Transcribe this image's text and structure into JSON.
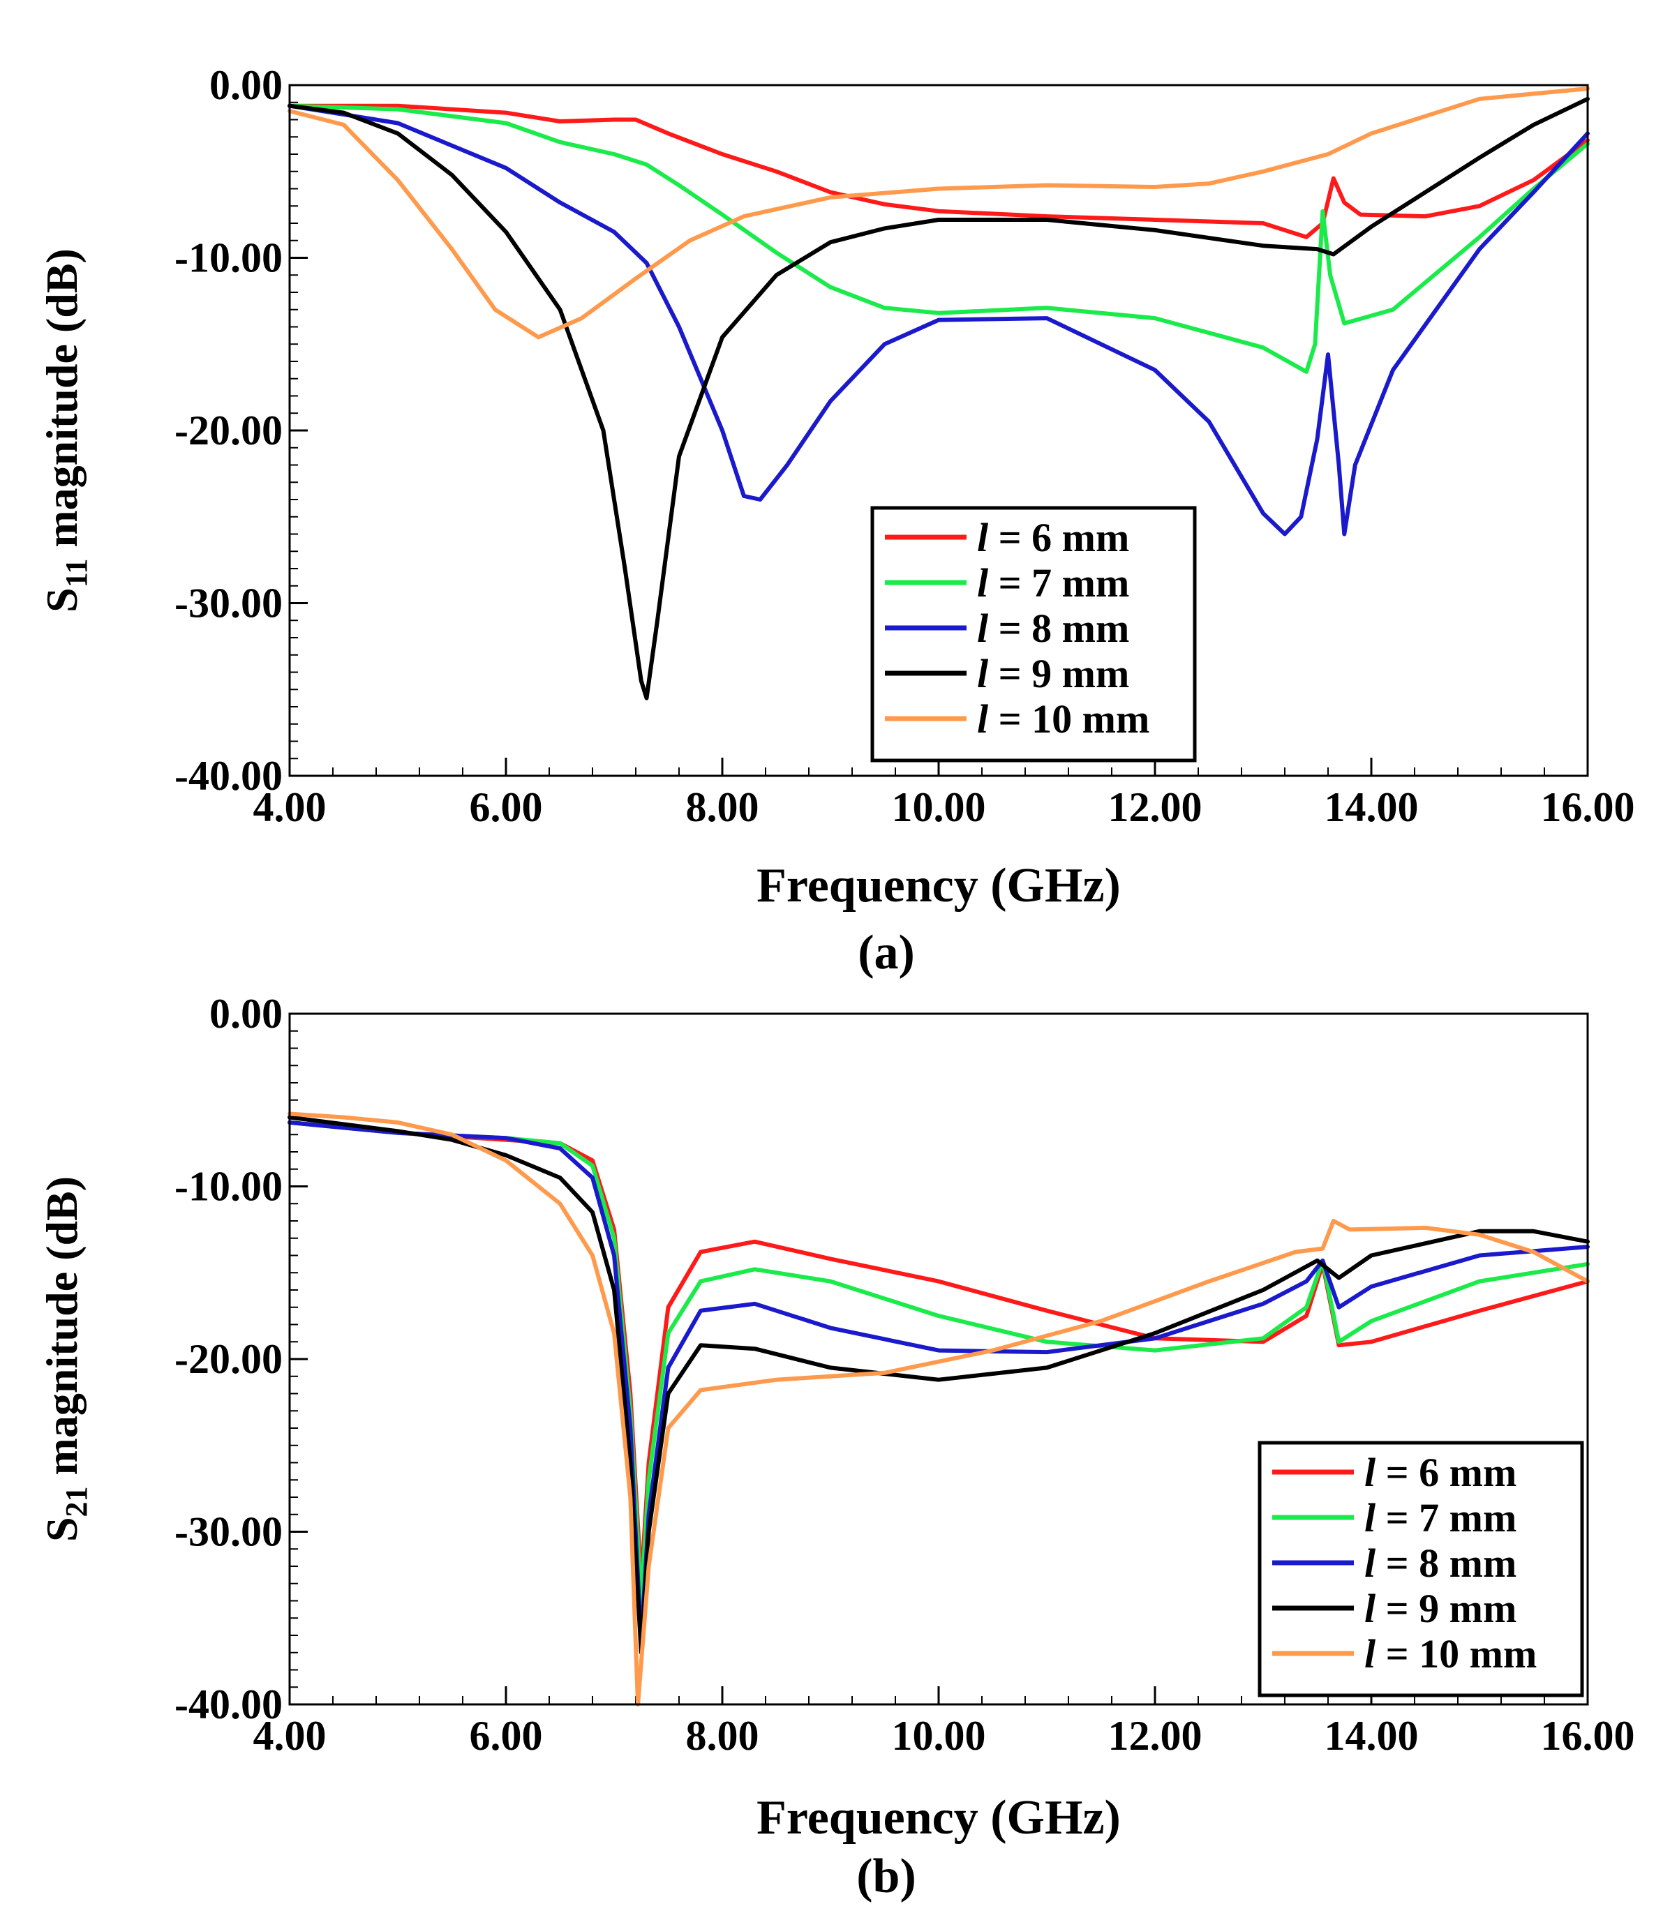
{
  "chart_data": [
    {
      "type": "line",
      "panel_label": "(a)",
      "xlabel": "Frequency (GHz)",
      "ylabel_main": "S",
      "ylabel_sub": "11",
      "ylabel_rest": " magnitude (dB)",
      "xlim": [
        4,
        16
      ],
      "ylim": [
        -40,
        0
      ],
      "x_ticks": [
        "4.00",
        "6.00",
        "8.00",
        "10.00",
        "12.00",
        "14.00",
        "16.00"
      ],
      "y_ticks": [
        "0.00",
        "-10.00",
        "-20.00",
        "-30.00",
        "-40.00"
      ],
      "grid": false,
      "legend_position": "bottom-center",
      "series": [
        {
          "name": "l = 6 mm",
          "legend_var": "l",
          "legend_rest": " = 6 mm",
          "color": "#ff1a1a",
          "points": [
            [
              4,
              -1.2
            ],
            [
              5,
              -1.2
            ],
            [
              6,
              -1.6
            ],
            [
              6.5,
              -2.1
            ],
            [
              7,
              -2.0
            ],
            [
              7.2,
              -2.0
            ],
            [
              7.5,
              -2.8
            ],
            [
              8,
              -4.0
            ],
            [
              8.5,
              -5.0
            ],
            [
              9,
              -6.2
            ],
            [
              9.5,
              -6.9
            ],
            [
              10,
              -7.3
            ],
            [
              11,
              -7.6
            ],
            [
              12,
              -7.8
            ],
            [
              13,
              -8.0
            ],
            [
              13.4,
              -8.8
            ],
            [
              13.55,
              -8.0
            ],
            [
              13.65,
              -5.4
            ],
            [
              13.75,
              -6.8
            ],
            [
              13.9,
              -7.5
            ],
            [
              14.5,
              -7.6
            ],
            [
              15,
              -7.0
            ],
            [
              15.5,
              -5.5
            ],
            [
              16,
              -3.2
            ]
          ]
        },
        {
          "name": "l = 7 mm",
          "legend_var": "l",
          "legend_rest": " = 7 mm",
          "color": "#1aeb4a",
          "points": [
            [
              4,
              -1.2
            ],
            [
              5,
              -1.4
            ],
            [
              6,
              -2.2
            ],
            [
              6.5,
              -3.3
            ],
            [
              7,
              -4.0
            ],
            [
              7.3,
              -4.6
            ],
            [
              7.6,
              -5.8
            ],
            [
              8,
              -7.5
            ],
            [
              8.5,
              -9.7
            ],
            [
              9,
              -11.7
            ],
            [
              9.5,
              -12.9
            ],
            [
              10,
              -13.2
            ],
            [
              11,
              -12.9
            ],
            [
              12,
              -13.5
            ],
            [
              13,
              -15.2
            ],
            [
              13.4,
              -16.6
            ],
            [
              13.48,
              -15.0
            ],
            [
              13.55,
              -7.3
            ],
            [
              13.62,
              -11.0
            ],
            [
              13.75,
              -13.8
            ],
            [
              14.2,
              -13.0
            ],
            [
              15,
              -8.8
            ],
            [
              15.5,
              -6.0
            ],
            [
              16,
              -3.4
            ]
          ]
        },
        {
          "name": "l = 8 mm",
          "legend_var": "l",
          "legend_rest": " = 8 mm",
          "color": "#1a1acc",
          "points": [
            [
              4,
              -1.2
            ],
            [
              5,
              -2.2
            ],
            [
              6,
              -4.8
            ],
            [
              6.5,
              -6.8
            ],
            [
              7,
              -8.5
            ],
            [
              7.3,
              -10.3
            ],
            [
              7.6,
              -14.0
            ],
            [
              8,
              -20.0
            ],
            [
              8.2,
              -23.8
            ],
            [
              8.35,
              -24.0
            ],
            [
              8.6,
              -22.0
            ],
            [
              9,
              -18.3
            ],
            [
              9.5,
              -15.0
            ],
            [
              10,
              -13.6
            ],
            [
              11,
              -13.5
            ],
            [
              12,
              -16.5
            ],
            [
              12.5,
              -19.5
            ],
            [
              13,
              -24.8
            ],
            [
              13.2,
              -26.0
            ],
            [
              13.35,
              -25.0
            ],
            [
              13.5,
              -20.5
            ],
            [
              13.6,
              -15.6
            ],
            [
              13.7,
              -22.0
            ],
            [
              13.75,
              -26.0
            ],
            [
              13.85,
              -22.0
            ],
            [
              14.2,
              -16.5
            ],
            [
              15,
              -9.5
            ],
            [
              15.5,
              -6.2
            ],
            [
              16,
              -2.8
            ]
          ]
        },
        {
          "name": "l = 9 mm",
          "legend_var": "l",
          "legend_rest": " = 9 mm",
          "color": "#000000",
          "points": [
            [
              4,
              -1.2
            ],
            [
              4.5,
              -1.6
            ],
            [
              5,
              -2.8
            ],
            [
              5.5,
              -5.2
            ],
            [
              6,
              -8.5
            ],
            [
              6.5,
              -13.0
            ],
            [
              6.9,
              -20.0
            ],
            [
              7.1,
              -28.0
            ],
            [
              7.25,
              -34.5
            ],
            [
              7.3,
              -35.5
            ],
            [
              7.4,
              -31.0
            ],
            [
              7.6,
              -21.5
            ],
            [
              8,
              -14.6
            ],
            [
              8.5,
              -11.0
            ],
            [
              9,
              -9.1
            ],
            [
              9.5,
              -8.3
            ],
            [
              10,
              -7.8
            ],
            [
              11,
              -7.8
            ],
            [
              12,
              -8.4
            ],
            [
              13,
              -9.3
            ],
            [
              13.5,
              -9.5
            ],
            [
              13.65,
              -9.8
            ],
            [
              14,
              -8.2
            ],
            [
              15,
              -4.2
            ],
            [
              15.5,
              -2.3
            ],
            [
              16,
              -0.8
            ]
          ]
        },
        {
          "name": "l = 10 mm",
          "legend_var": "l",
          "legend_rest": " = 10 mm",
          "color": "#ff9a4d",
          "points": [
            [
              4,
              -1.5
            ],
            [
              4.5,
              -2.3
            ],
            [
              5,
              -5.5
            ],
            [
              5.5,
              -9.5
            ],
            [
              5.9,
              -13.0
            ],
            [
              6.3,
              -14.6
            ],
            [
              6.7,
              -13.5
            ],
            [
              7.2,
              -11.2
            ],
            [
              7.7,
              -9.0
            ],
            [
              8.2,
              -7.6
            ],
            [
              9,
              -6.5
            ],
            [
              10,
              -6.0
            ],
            [
              11,
              -5.8
            ],
            [
              12,
              -5.9
            ],
            [
              12.5,
              -5.7
            ],
            [
              13,
              -5.0
            ],
            [
              13.6,
              -4.0
            ],
            [
              14,
              -2.8
            ],
            [
              15,
              -0.8
            ],
            [
              16,
              -0.2
            ]
          ]
        }
      ]
    },
    {
      "type": "line",
      "panel_label": "(b)",
      "xlabel": "Frequency (GHz)",
      "ylabel_main": "S",
      "ylabel_sub": "21",
      "ylabel_rest": " magnitude (dB)",
      "xlim": [
        4,
        16
      ],
      "ylim": [
        -40,
        0
      ],
      "x_ticks": [
        "4.00",
        "6.00",
        "8.00",
        "10.00",
        "12.00",
        "14.00",
        "16.00"
      ],
      "y_ticks": [
        "0.00",
        "-10.00",
        "-20.00",
        "-30.00",
        "-40.00"
      ],
      "grid": false,
      "legend_position": "bottom-right",
      "series": [
        {
          "name": "l = 6 mm",
          "legend_var": "l",
          "legend_rest": " = 6 mm",
          "color": "#ff1a1a",
          "points": [
            [
              4,
              -6.3
            ],
            [
              5,
              -6.9
            ],
            [
              6,
              -7.3
            ],
            [
              6.5,
              -7.5
            ],
            [
              6.8,
              -8.5
            ],
            [
              7,
              -12.5
            ],
            [
              7.15,
              -22.0
            ],
            [
              7.25,
              -33.0
            ],
            [
              7.32,
              -26.0
            ],
            [
              7.5,
              -17.0
            ],
            [
              7.8,
              -13.8
            ],
            [
              8.3,
              -13.2
            ],
            [
              9,
              -14.2
            ],
            [
              10,
              -15.5
            ],
            [
              11,
              -17.2
            ],
            [
              12,
              -18.8
            ],
            [
              13,
              -19.0
            ],
            [
              13.4,
              -17.5
            ],
            [
              13.55,
              -14.5
            ],
            [
              13.7,
              -19.2
            ],
            [
              14,
              -19.0
            ],
            [
              15,
              -17.2
            ],
            [
              16,
              -15.5
            ]
          ]
        },
        {
          "name": "l = 7 mm",
          "legend_var": "l",
          "legend_rest": " = 7 mm",
          "color": "#1aeb4a",
          "points": [
            [
              4,
              -6.3
            ],
            [
              5,
              -6.9
            ],
            [
              6,
              -7.2
            ],
            [
              6.5,
              -7.5
            ],
            [
              6.8,
              -8.8
            ],
            [
              7,
              -13.0
            ],
            [
              7.15,
              -23.0
            ],
            [
              7.25,
              -34.0
            ],
            [
              7.32,
              -27.0
            ],
            [
              7.5,
              -18.5
            ],
            [
              7.8,
              -15.5
            ],
            [
              8.3,
              -14.8
            ],
            [
              9,
              -15.5
            ],
            [
              10,
              -17.5
            ],
            [
              11,
              -19.0
            ],
            [
              12,
              -19.5
            ],
            [
              13,
              -18.8
            ],
            [
              13.4,
              -17.0
            ],
            [
              13.55,
              -14.3
            ],
            [
              13.7,
              -19.0
            ],
            [
              14,
              -17.8
            ],
            [
              15,
              -15.5
            ],
            [
              16,
              -14.5
            ]
          ]
        },
        {
          "name": "l = 8 mm",
          "legend_var": "l",
          "legend_rest": " = 8 mm",
          "color": "#1a1acc",
          "points": [
            [
              4,
              -6.3
            ],
            [
              5,
              -6.9
            ],
            [
              6,
              -7.2
            ],
            [
              6.5,
              -7.8
            ],
            [
              6.8,
              -9.5
            ],
            [
              7,
              -14.0
            ],
            [
              7.15,
              -24.0
            ],
            [
              7.25,
              -36.5
            ],
            [
              7.32,
              -29.0
            ],
            [
              7.5,
              -20.5
            ],
            [
              7.8,
              -17.2
            ],
            [
              8.3,
              -16.8
            ],
            [
              9,
              -18.2
            ],
            [
              10,
              -19.5
            ],
            [
              11,
              -19.6
            ],
            [
              12,
              -18.8
            ],
            [
              13,
              -16.8
            ],
            [
              13.4,
              -15.5
            ],
            [
              13.55,
              -14.3
            ],
            [
              13.7,
              -17.0
            ],
            [
              14,
              -15.8
            ],
            [
              15,
              -14.0
            ],
            [
              16,
              -13.5
            ]
          ]
        },
        {
          "name": "l = 9 mm",
          "legend_var": "l",
          "legend_rest": " = 9 mm",
          "color": "#000000",
          "points": [
            [
              4,
              -6.0
            ],
            [
              5,
              -6.8
            ],
            [
              5.5,
              -7.3
            ],
            [
              6,
              -8.2
            ],
            [
              6.5,
              -9.5
            ],
            [
              6.8,
              -11.5
            ],
            [
              7,
              -16.0
            ],
            [
              7.15,
              -26.0
            ],
            [
              7.25,
              -37.0
            ],
            [
              7.32,
              -30.0
            ],
            [
              7.5,
              -22.0
            ],
            [
              7.8,
              -19.2
            ],
            [
              8.3,
              -19.4
            ],
            [
              9,
              -20.5
            ],
            [
              10,
              -21.2
            ],
            [
              11,
              -20.5
            ],
            [
              12,
              -18.5
            ],
            [
              13,
              -16.0
            ],
            [
              13.5,
              -14.3
            ],
            [
              13.7,
              -15.3
            ],
            [
              14,
              -14.0
            ],
            [
              15,
              -12.6
            ],
            [
              15.5,
              -12.6
            ],
            [
              16,
              -13.2
            ]
          ]
        },
        {
          "name": "l = 10 mm",
          "legend_var": "l",
          "legend_rest": " = 10 mm",
          "color": "#ff9a4d",
          "points": [
            [
              4,
              -5.8
            ],
            [
              4.5,
              -6.0
            ],
            [
              5,
              -6.3
            ],
            [
              5.5,
              -7.0
            ],
            [
              6,
              -8.5
            ],
            [
              6.5,
              -11.0
            ],
            [
              6.8,
              -14.0
            ],
            [
              7,
              -18.5
            ],
            [
              7.15,
              -28.0
            ],
            [
              7.22,
              -40.0
            ],
            [
              7.32,
              -32.0
            ],
            [
              7.5,
              -24.0
            ],
            [
              7.8,
              -21.8
            ],
            [
              8.5,
              -21.2
            ],
            [
              9.5,
              -20.8
            ],
            [
              10.5,
              -19.5
            ],
            [
              11.5,
              -17.8
            ],
            [
              12.5,
              -15.5
            ],
            [
              13.3,
              -13.8
            ],
            [
              13.55,
              -13.6
            ],
            [
              13.65,
              -12.0
            ],
            [
              13.8,
              -12.5
            ],
            [
              14.5,
              -12.4
            ],
            [
              15,
              -12.8
            ],
            [
              15.5,
              -13.8
            ],
            [
              16,
              -15.5
            ]
          ]
        }
      ]
    }
  ]
}
